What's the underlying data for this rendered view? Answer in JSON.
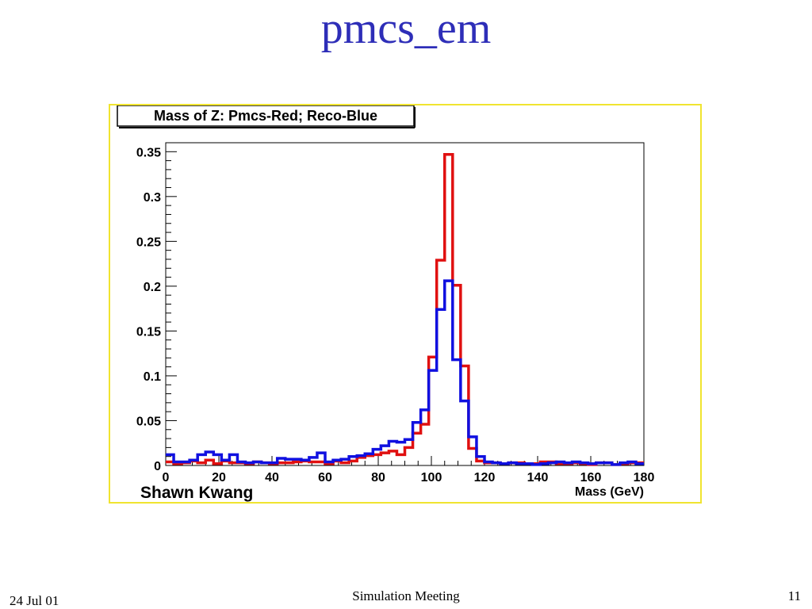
{
  "slide": {
    "title": "pmcs_em",
    "footer_date": "24 Jul 01",
    "footer_center": "Simulation Meeting",
    "footer_page": "11"
  },
  "colors": {
    "pmcs": "#e01010",
    "reco": "#1010e0",
    "frame": "#f0e430",
    "title": "#2e2eb8"
  },
  "chart_data": {
    "type": "histogram",
    "title": "Mass of Z: Pmcs-Red; Reco-Blue",
    "author_label": "Shawn Kwang",
    "xlabel": "Mass (GeV)",
    "ylabel": "",
    "xlim": [
      0,
      180
    ],
    "ylim": [
      0,
      0.36
    ],
    "bin_width": 3,
    "x_ticks": [
      "0",
      "20",
      "40",
      "60",
      "80",
      "100",
      "120",
      "140",
      "160",
      "180"
    ],
    "y_ticks": [
      "0",
      "0.05",
      "0.1",
      "0.15",
      "0.2",
      "0.25",
      "0.3",
      "0.35"
    ],
    "grid": false,
    "series": [
      {
        "name": "Pmcs",
        "color": "red",
        "values": [
          0.004,
          0.002,
          0.003,
          0.005,
          0.003,
          0.006,
          0.002,
          0.005,
          0.003,
          0.003,
          0.002,
          0.004,
          0.003,
          0.002,
          0.003,
          0.003,
          0.004,
          0.005,
          0.004,
          0.004,
          0.002,
          0.005,
          0.003,
          0.005,
          0.009,
          0.011,
          0.012,
          0.014,
          0.016,
          0.012,
          0.02,
          0.036,
          0.046,
          0.121,
          0.229,
          0.347,
          0.201,
          0.111,
          0.019,
          0.005,
          0.003,
          0.003,
          0.002,
          0.003,
          0.003,
          0.002,
          0.002,
          0.004,
          0.004,
          0.002,
          0.002,
          0.003,
          0.002,
          0.001,
          0.003,
          0.003,
          0.001,
          0.002,
          0.003,
          0.003
        ]
      },
      {
        "name": "Reco",
        "color": "blue",
        "values": [
          0.012,
          0.004,
          0.004,
          0.006,
          0.012,
          0.015,
          0.012,
          0.006,
          0.012,
          0.004,
          0.003,
          0.004,
          0.003,
          0.003,
          0.008,
          0.007,
          0.007,
          0.006,
          0.009,
          0.014,
          0.004,
          0.006,
          0.007,
          0.01,
          0.011,
          0.013,
          0.018,
          0.022,
          0.027,
          0.026,
          0.029,
          0.048,
          0.062,
          0.106,
          0.174,
          0.206,
          0.118,
          0.072,
          0.032,
          0.01,
          0.004,
          0.003,
          0.002,
          0.003,
          0.002,
          0.002,
          0.001,
          0.002,
          0.003,
          0.004,
          0.003,
          0.004,
          0.003,
          0.002,
          0.003,
          0.003,
          0.001,
          0.003,
          0.004,
          0.002
        ]
      }
    ]
  }
}
